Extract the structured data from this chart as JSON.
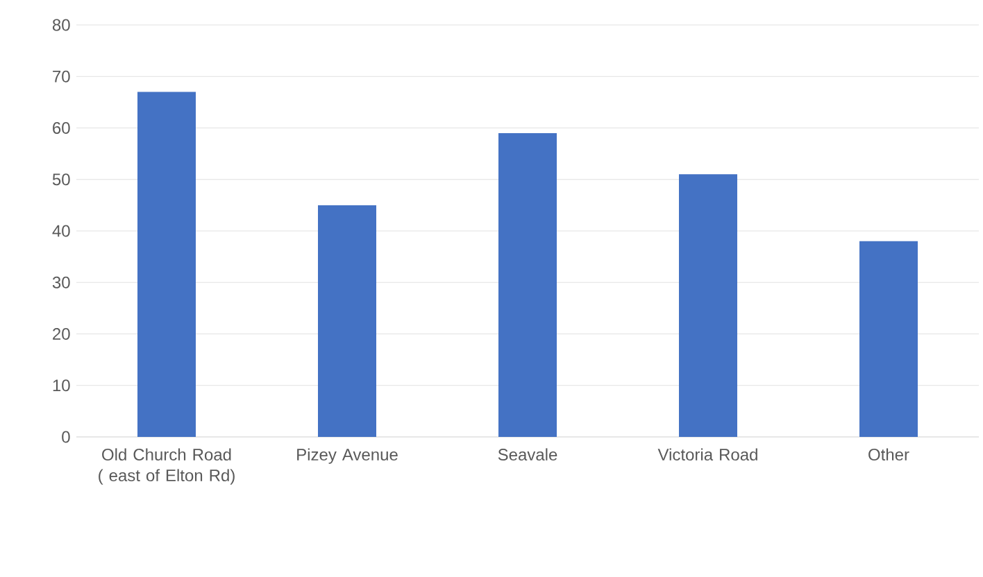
{
  "chart_data": {
    "type": "bar",
    "categories": [
      "Old Church Road ( east of Elton Rd)",
      "Pizey Avenue",
      "Seavale",
      "Victoria Road",
      "Other"
    ],
    "values": [
      67,
      45,
      59,
      51,
      38
    ],
    "color": "#4472c4",
    "ylim": [
      0,
      80
    ],
    "yticks": [
      0,
      10,
      20,
      30,
      40,
      50,
      60,
      70,
      80
    ],
    "grid": "y"
  }
}
